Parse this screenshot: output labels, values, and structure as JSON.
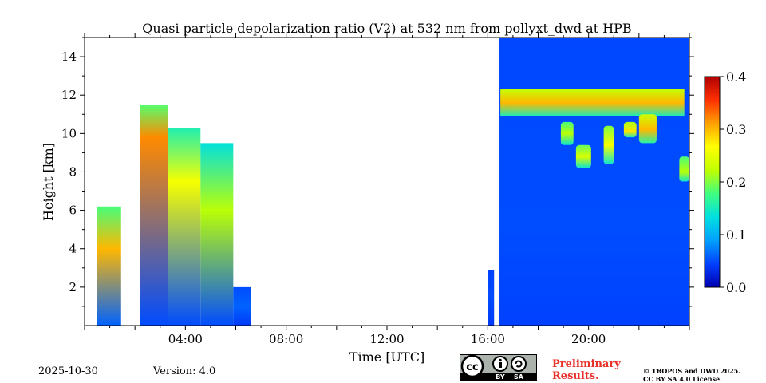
{
  "chart_data": {
    "type": "heatmap",
    "title": "Quasi particle depolarization ratio (V2) at 532 nm from pollyxt_dwd at HPB",
    "xlabel": "Time [UTC]",
    "ylabel": "Height [km]",
    "x_unit": "hours UTC",
    "xlim": [
      0,
      24
    ],
    "ylim": [
      0,
      15
    ],
    "x_ticks": [
      {
        "value": 4,
        "label": "04:00"
      },
      {
        "value": 8,
        "label": "08:00"
      },
      {
        "value": 12,
        "label": "12:00"
      },
      {
        "value": 16,
        "label": "16:00"
      },
      {
        "value": 20,
        "label": "20:00"
      }
    ],
    "y_ticks": [
      {
        "value": 2,
        "label": "2"
      },
      {
        "value": 4,
        "label": "4"
      },
      {
        "value": 6,
        "label": "6"
      },
      {
        "value": 8,
        "label": "8"
      },
      {
        "value": 10,
        "label": "10"
      },
      {
        "value": 12,
        "label": "12"
      },
      {
        "value": 14,
        "label": "14"
      }
    ],
    "colorbar": {
      "min": 0.0,
      "max": 0.4,
      "ticks": [
        "0.0",
        "0.1",
        "0.2",
        "0.3",
        "0.4"
      ],
      "colormap": "jet",
      "stops": [
        "#0000b0",
        "#0040ff",
        "#00a0ff",
        "#00e0e0",
        "#40ff80",
        "#c0ff00",
        "#ffff00",
        "#ffa000",
        "#ff3000",
        "#b00000"
      ]
    },
    "regions": [
      {
        "name": "early-aerosol-column",
        "t0": 0.5,
        "t1": 1.45,
        "h0": 0.0,
        "h1": 6.2,
        "base": 0.06,
        "peak": 0.3,
        "peak_h": 4.0
      },
      {
        "name": "cloud-column-a",
        "t0": 2.2,
        "t1": 3.3,
        "h0": 0.0,
        "h1": 11.5,
        "base": 0.05,
        "peak": 0.32,
        "peak_h": 9.8
      },
      {
        "name": "cloud-column-b",
        "t0": 3.3,
        "t1": 4.6,
        "h0": 0.0,
        "h1": 10.3,
        "base": 0.05,
        "peak": 0.26,
        "peak_h": 7.5
      },
      {
        "name": "cloud-column-c",
        "t0": 4.6,
        "t1": 5.9,
        "h0": 0.0,
        "h1": 9.5,
        "base": 0.05,
        "peak": 0.22,
        "peak_h": 6.0
      },
      {
        "name": "low-layer-tail",
        "t0": 5.9,
        "t1": 6.6,
        "h0": 0.0,
        "h1": 2.0,
        "base": 0.04,
        "peak": 0.06,
        "peak_h": 1.0
      },
      {
        "name": "evening-short-profile",
        "t0": 16.0,
        "t1": 16.25,
        "h0": 0.0,
        "h1": 2.9,
        "base": 0.04,
        "peak": 0.05,
        "peak_h": 1.5
      },
      {
        "name": "evening-full-column",
        "t0": 16.45,
        "t1": 24.0,
        "h0": 0.0,
        "h1": 15.0,
        "base": 0.045,
        "peak": 0.05,
        "peak_h": 5.0
      },
      {
        "name": "cirrus-band",
        "t0": 16.5,
        "t1": 23.8,
        "h0": 10.9,
        "h1": 12.3,
        "base": 0.15,
        "peak": 0.3,
        "peak_h": 11.6
      },
      {
        "name": "cirrus-fallstreak-1",
        "t0": 18.9,
        "t1": 19.4,
        "h0": 9.4,
        "h1": 10.6,
        "base": 0.14,
        "peak": 0.22,
        "peak_h": 10.0
      },
      {
        "name": "cirrus-fallstreak-2",
        "t0": 19.5,
        "t1": 20.1,
        "h0": 8.2,
        "h1": 9.4,
        "base": 0.14,
        "peak": 0.24,
        "peak_h": 8.8
      },
      {
        "name": "cirrus-fallstreak-3",
        "t0": 20.6,
        "t1": 21.0,
        "h0": 8.4,
        "h1": 10.4,
        "base": 0.14,
        "peak": 0.26,
        "peak_h": 9.4
      },
      {
        "name": "cirrus-fallstreak-4",
        "t0": 21.4,
        "t1": 21.9,
        "h0": 9.8,
        "h1": 10.6,
        "base": 0.15,
        "peak": 0.28,
        "peak_h": 10.1
      },
      {
        "name": "cirrus-fallstreak-5",
        "t0": 22.0,
        "t1": 22.7,
        "h0": 9.5,
        "h1": 11.0,
        "base": 0.16,
        "peak": 0.3,
        "peak_h": 10.2
      },
      {
        "name": "cirrus-fallstreak-6",
        "t0": 23.6,
        "t1": 24.0,
        "h0": 7.5,
        "h1": 8.8,
        "base": 0.14,
        "peak": 0.22,
        "peak_h": 8.0
      }
    ]
  },
  "footer": {
    "date": "2025-10-30",
    "version": "Version: 4.0",
    "preliminary_line1": "Preliminary",
    "preliminary_line2": "Results.",
    "copyright_line1": "© TROPOS and DWD 2025.",
    "copyright_line2": "CC BY SA 4.0 License.",
    "license_badge": {
      "cc": "cc",
      "by": "BY",
      "sa": "SA"
    }
  }
}
